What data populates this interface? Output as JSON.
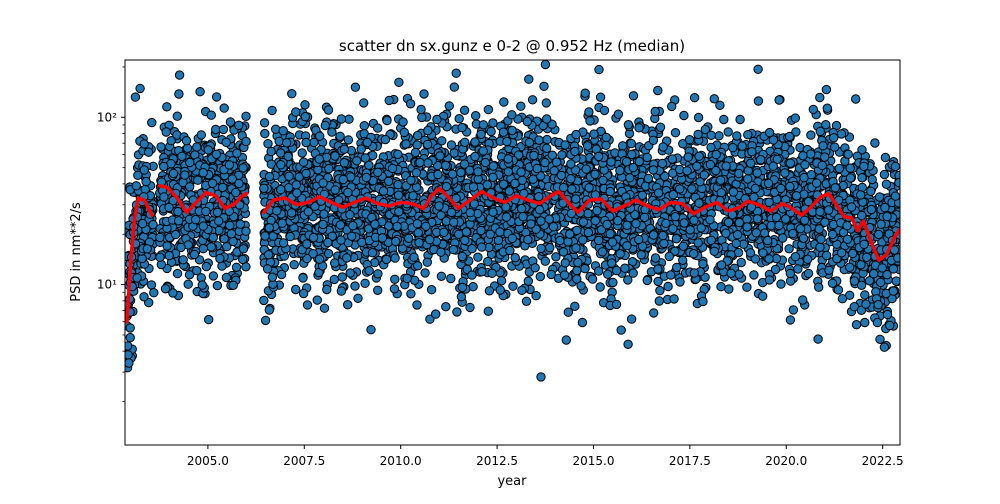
{
  "chart_data": {
    "type": "scatter",
    "title": "scatter dn sx.gunz e 0-2 @ 0.952 Hz (median)",
    "xlabel": "year",
    "ylabel": "PSD in nm**2/s",
    "xlim": [
      2002.85,
      2022.95
    ],
    "ylim": [
      1.1,
      220
    ],
    "y_scale": "log",
    "grid": false,
    "x_ticks": [
      2005.0,
      2007.5,
      2010.0,
      2012.5,
      2015.0,
      2017.5,
      2020.0,
      2022.5
    ],
    "x_tick_labels": [
      "2005.0",
      "2007.5",
      "2010.0",
      "2012.5",
      "2015.0",
      "2017.5",
      "2020.0",
      "2022.5"
    ],
    "y_ticks": [
      10,
      100
    ],
    "y_tick_labels": [
      "10¹",
      "10²"
    ],
    "colors": {
      "scatter_fill": "#1f77b4",
      "scatter_edge": "#000000",
      "median_line": "#ff0000"
    },
    "series": [
      {
        "type": "scatter",
        "segments": [
          [
            2002.9,
            2003.6
          ],
          [
            2003.75,
            2006.0
          ],
          [
            2006.45,
            2022.95
          ]
        ],
        "baseline_points": [
          [
            2003.55,
            24.0
          ],
          [
            2003.8,
            38.0
          ],
          [
            2004.2,
            33.0
          ],
          [
            2004.5,
            27.0
          ],
          [
            2004.8,
            33.0
          ],
          [
            2005.2,
            35.0
          ],
          [
            2005.5,
            28.5
          ],
          [
            2005.9,
            34.0
          ],
          [
            2006.55,
            27.0
          ],
          [
            2007.0,
            33.0
          ],
          [
            2007.5,
            30.0
          ],
          [
            2008.0,
            33.0
          ],
          [
            2008.5,
            29.0
          ],
          [
            2009.0,
            32.0
          ],
          [
            2009.5,
            30.0
          ],
          [
            2010.0,
            30.5
          ],
          [
            2010.5,
            29.0
          ],
          [
            2011.0,
            37.0
          ],
          [
            2011.5,
            28.5
          ],
          [
            2012.0,
            35.0
          ],
          [
            2012.5,
            32.0
          ],
          [
            2013.0,
            34.0
          ],
          [
            2013.5,
            31.0
          ],
          [
            2014.0,
            35.5
          ],
          [
            2014.5,
            27.5
          ],
          [
            2015.0,
            33.0
          ],
          [
            2015.5,
            27.0
          ],
          [
            2016.0,
            31.5
          ],
          [
            2016.5,
            28.5
          ],
          [
            2017.0,
            31.0
          ],
          [
            2017.5,
            26.5
          ],
          [
            2018.0,
            31.0
          ],
          [
            2018.5,
            27.0
          ],
          [
            2019.0,
            31.0
          ],
          [
            2019.5,
            28.0
          ],
          [
            2020.0,
            29.0
          ],
          [
            2020.5,
            25.5
          ],
          [
            2021.0,
            34.0
          ],
          [
            2021.5,
            25.0
          ],
          [
            2021.8,
            21.5
          ],
          [
            2022.0,
            24.0
          ],
          [
            2022.4,
            14.0
          ],
          [
            2022.95,
            21.0
          ]
        ]
      },
      {
        "type": "line",
        "points": [
          [
            2002.9,
            6.0
          ],
          [
            2003.0,
            14.0
          ],
          [
            2003.1,
            25.0
          ],
          [
            2003.2,
            33.0
          ],
          [
            2003.35,
            32.0
          ],
          [
            2003.55,
            26.0
          ]
        ]
      },
      {
        "type": "line",
        "points": [
          [
            2003.75,
            39.0
          ],
          [
            2003.95,
            38.0
          ],
          [
            2004.2,
            33.0
          ],
          [
            2004.45,
            27.0
          ],
          [
            2004.7,
            31.0
          ],
          [
            2004.95,
            35.5
          ],
          [
            2005.2,
            34.0
          ],
          [
            2005.45,
            28.5
          ],
          [
            2005.7,
            30.5
          ],
          [
            2005.9,
            34.0
          ],
          [
            2006.0,
            35.0
          ]
        ]
      },
      {
        "type": "line",
        "points": [
          [
            2006.45,
            27.0
          ],
          [
            2006.7,
            32.0
          ],
          [
            2007.0,
            33.0
          ],
          [
            2007.3,
            30.0
          ],
          [
            2007.6,
            31.0
          ],
          [
            2007.9,
            33.5
          ],
          [
            2008.2,
            31.0
          ],
          [
            2008.5,
            29.0
          ],
          [
            2008.8,
            31.0
          ],
          [
            2009.1,
            33.0
          ],
          [
            2009.4,
            30.5
          ],
          [
            2009.7,
            29.5
          ],
          [
            2010.0,
            31.0
          ],
          [
            2010.3,
            30.5
          ],
          [
            2010.6,
            28.5
          ],
          [
            2010.8,
            34.0
          ],
          [
            2011.0,
            37.5
          ],
          [
            2011.2,
            34.0
          ],
          [
            2011.5,
            28.5
          ],
          [
            2011.8,
            32.0
          ],
          [
            2012.1,
            36.0
          ],
          [
            2012.4,
            33.0
          ],
          [
            2012.7,
            31.0
          ],
          [
            2013.0,
            34.0
          ],
          [
            2013.3,
            32.0
          ],
          [
            2013.6,
            30.5
          ],
          [
            2013.9,
            34.0
          ],
          [
            2014.1,
            36.0
          ],
          [
            2014.4,
            30.0
          ],
          [
            2014.6,
            27.0
          ],
          [
            2014.9,
            32.0
          ],
          [
            2015.2,
            32.5
          ],
          [
            2015.5,
            27.5
          ],
          [
            2015.8,
            29.5
          ],
          [
            2016.1,
            32.0
          ],
          [
            2016.4,
            29.5
          ],
          [
            2016.7,
            28.0
          ],
          [
            2017.0,
            31.0
          ],
          [
            2017.3,
            30.5
          ],
          [
            2017.6,
            26.5
          ],
          [
            2017.9,
            29.0
          ],
          [
            2018.2,
            31.0
          ],
          [
            2018.5,
            27.5
          ],
          [
            2018.8,
            29.0
          ],
          [
            2019.0,
            31.5
          ],
          [
            2019.3,
            30.0
          ],
          [
            2019.6,
            27.5
          ],
          [
            2019.9,
            30.5
          ],
          [
            2020.1,
            29.0
          ],
          [
            2020.4,
            26.0
          ],
          [
            2020.6,
            28.5
          ],
          [
            2020.9,
            33.5
          ],
          [
            2021.1,
            35.0
          ],
          [
            2021.3,
            30.0
          ],
          [
            2021.5,
            25.5
          ],
          [
            2021.7,
            25.0
          ],
          [
            2021.85,
            21.0
          ],
          [
            2022.0,
            24.0
          ],
          [
            2022.2,
            18.0
          ],
          [
            2022.4,
            14.0
          ],
          [
            2022.6,
            15.0
          ],
          [
            2022.8,
            19.0
          ],
          [
            2022.95,
            21.5
          ]
        ]
      }
    ],
    "legend": "none"
  }
}
